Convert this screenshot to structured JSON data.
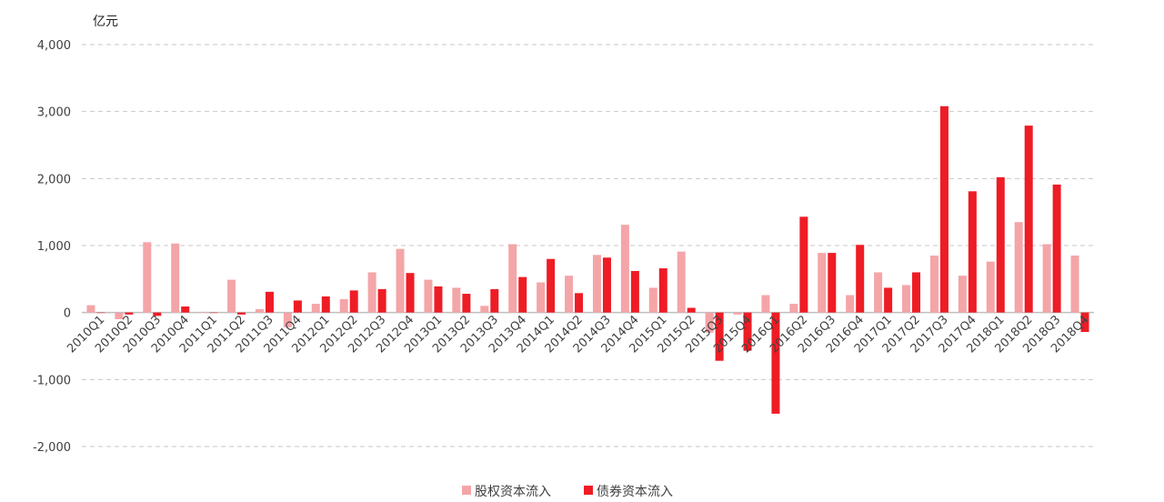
{
  "chart_data": {
    "type": "bar",
    "unit_label": "亿元",
    "ylim": [
      -2000,
      4000
    ],
    "yticks": [
      -2000,
      -1000,
      0,
      1000,
      2000,
      3000,
      4000
    ],
    "ytick_labels": [
      "-2,000",
      "-1,000",
      "0",
      "1,000",
      "2,000",
      "3,000",
      "4,000"
    ],
    "grid": true,
    "legend_position": "bottom",
    "categories": [
      "2010Q1",
      "2010Q2",
      "2010Q3",
      "2010Q4",
      "2011Q1",
      "2011Q2",
      "2011Q3",
      "2011Q4",
      "2012Q1",
      "2012Q2",
      "2012Q3",
      "2012Q4",
      "2013Q1",
      "2013Q2",
      "2013Q3",
      "2013Q4",
      "2014Q1",
      "2014Q2",
      "2014Q3",
      "2014Q4",
      "2015Q1",
      "2015Q2",
      "2015Q3",
      "2015Q4",
      "2016Q1",
      "2016Q2",
      "2016Q3",
      "2016Q4",
      "2017Q1",
      "2017Q2",
      "2017Q3",
      "2017Q4",
      "2018Q1",
      "2018Q2",
      "2018Q3",
      "2018Q4"
    ],
    "series": [
      {
        "name": "股权资本流入",
        "color": "#f4a5a8",
        "values": [
          110,
          -100,
          1050,
          1030,
          10,
          490,
          50,
          -220,
          130,
          200,
          600,
          950,
          490,
          370,
          100,
          1020,
          450,
          550,
          860,
          1310,
          370,
          910,
          -300,
          -30,
          260,
          130,
          890,
          260,
          600,
          410,
          850,
          550,
          760,
          1350,
          1020,
          850
        ]
      },
      {
        "name": "债券资本流入",
        "color": "#ee1c25",
        "values": [
          0,
          -30,
          -50,
          90,
          0,
          -30,
          310,
          180,
          240,
          330,
          350,
          590,
          390,
          280,
          350,
          530,
          800,
          290,
          820,
          620,
          660,
          70,
          -720,
          -570,
          -1510,
          1430,
          890,
          1010,
          370,
          600,
          3080,
          1810,
          2020,
          2790,
          1910,
          -290
        ]
      }
    ]
  }
}
